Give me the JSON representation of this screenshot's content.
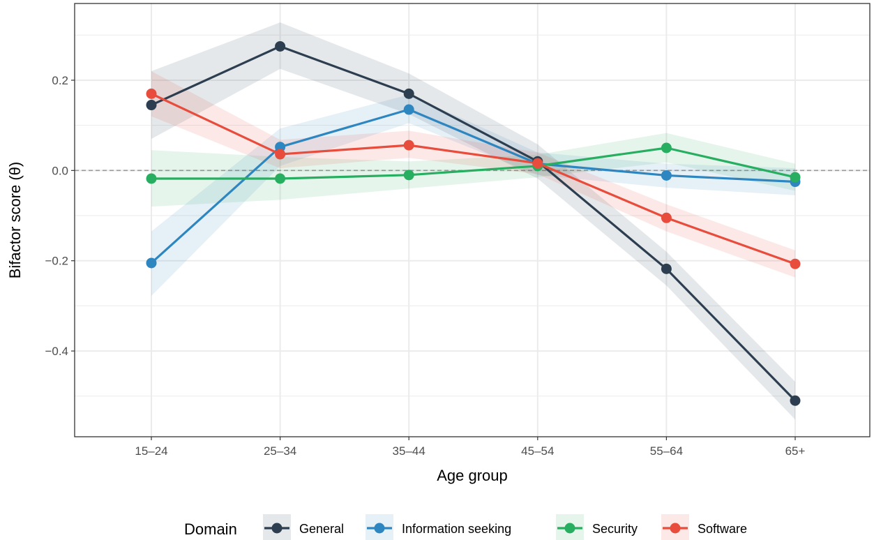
{
  "chart_data": {
    "type": "line",
    "xlabel": "Age group",
    "ylabel": "Bifactor score (θ)",
    "categories": [
      "15–24",
      "25–34",
      "35–44",
      "45–54",
      "55–64",
      "65+"
    ],
    "ylim": [
      -0.59,
      0.37
    ],
    "yticks": [
      0.2,
      0.0,
      -0.2,
      -0.4
    ],
    "ytick_labels": [
      "0.2",
      "0.0",
      "−0.2",
      "−0.4"
    ],
    "reference_line": 0,
    "grid": true,
    "legend": {
      "title": "Domain",
      "position": "bottom"
    },
    "series": [
      {
        "name": "General",
        "color": "#2c3e50",
        "values": [
          0.145,
          0.275,
          0.17,
          0.02,
          -0.218,
          -0.51
        ],
        "lower": [
          0.07,
          0.225,
          0.125,
          -0.018,
          -0.255,
          -0.552
        ],
        "upper": [
          0.22,
          0.328,
          0.215,
          0.058,
          -0.18,
          -0.468
        ]
      },
      {
        "name": "Information seeking",
        "color": "#2e86c1",
        "values": [
          -0.205,
          0.052,
          0.135,
          0.015,
          -0.011,
          -0.025
        ],
        "lower": [
          -0.278,
          0.01,
          0.105,
          -0.01,
          -0.038,
          -0.055
        ],
        "upper": [
          -0.135,
          0.093,
          0.168,
          0.04,
          0.015,
          0.005
        ]
      },
      {
        "name": "Security",
        "color": "#27ae60",
        "values": [
          -0.018,
          -0.018,
          -0.01,
          0.01,
          0.05,
          -0.015
        ],
        "lower": [
          -0.08,
          -0.065,
          -0.04,
          -0.015,
          0.018,
          -0.045
        ],
        "upper": [
          0.045,
          0.03,
          0.02,
          0.035,
          0.083,
          0.015
        ]
      },
      {
        "name": "Software",
        "color": "#e74c3c",
        "values": [
          0.17,
          0.036,
          0.056,
          0.016,
          -0.105,
          -0.207
        ],
        "lower": [
          0.12,
          0.005,
          0.028,
          -0.008,
          -0.135,
          -0.237
        ],
        "upper": [
          0.22,
          0.068,
          0.088,
          0.04,
          -0.075,
          -0.177
        ]
      }
    ]
  }
}
